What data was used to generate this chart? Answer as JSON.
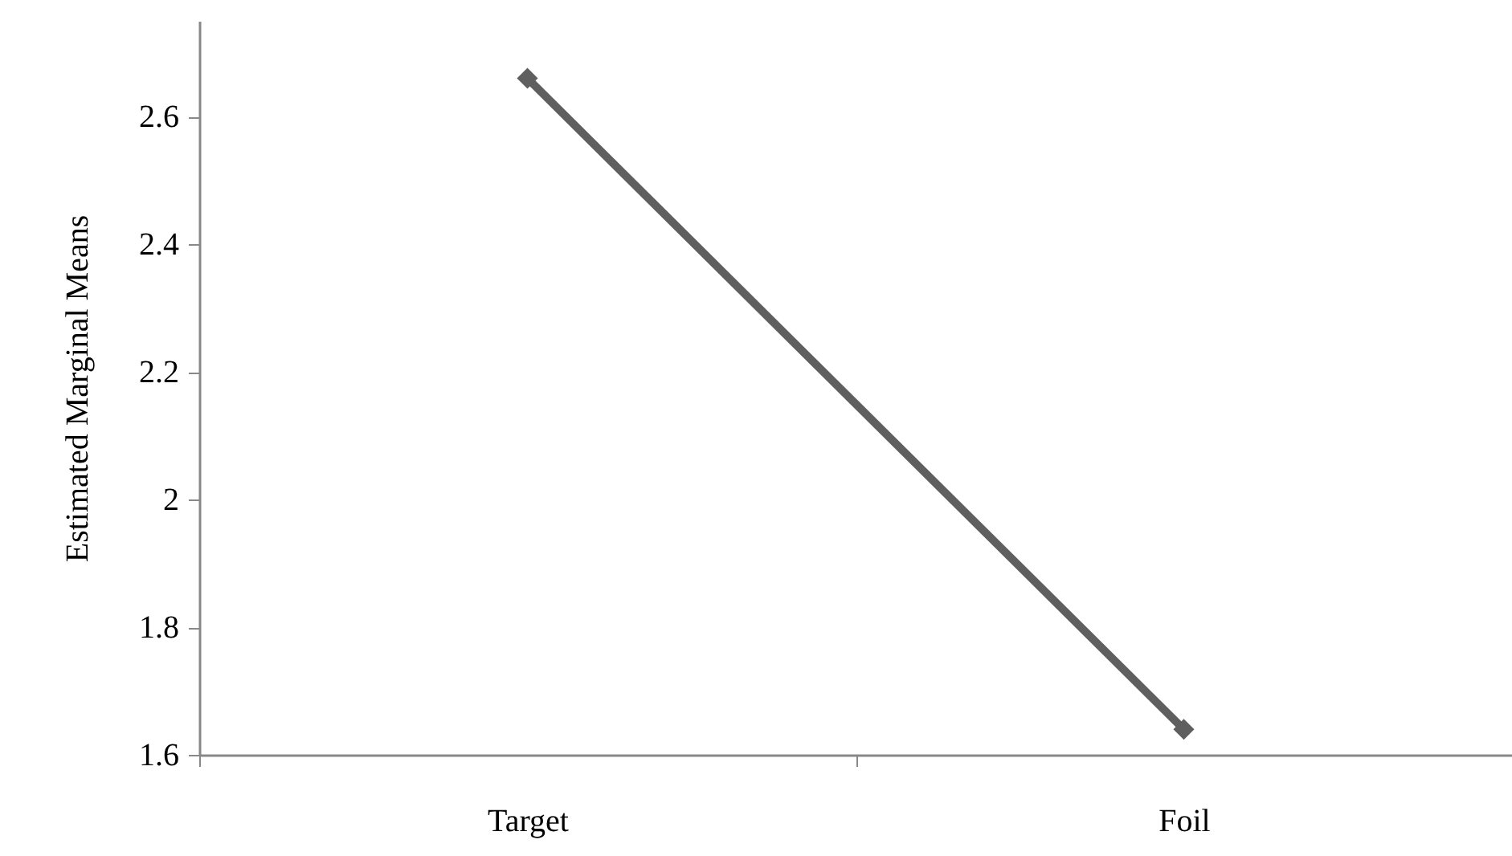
{
  "chart_data": {
    "type": "line",
    "ylabel": "Estimated Marginal Means",
    "categories": [
      "Target",
      "Foil"
    ],
    "series": [
      {
        "color": "#5f5f5f",
        "values": [
          2.66,
          1.64
        ]
      }
    ],
    "ylim": [
      1.6,
      2.75
    ],
    "yticks": [
      1.6,
      1.8,
      2,
      2.2,
      2.4,
      2.6
    ],
    "marker": "diamond",
    "line_style": "solid"
  }
}
